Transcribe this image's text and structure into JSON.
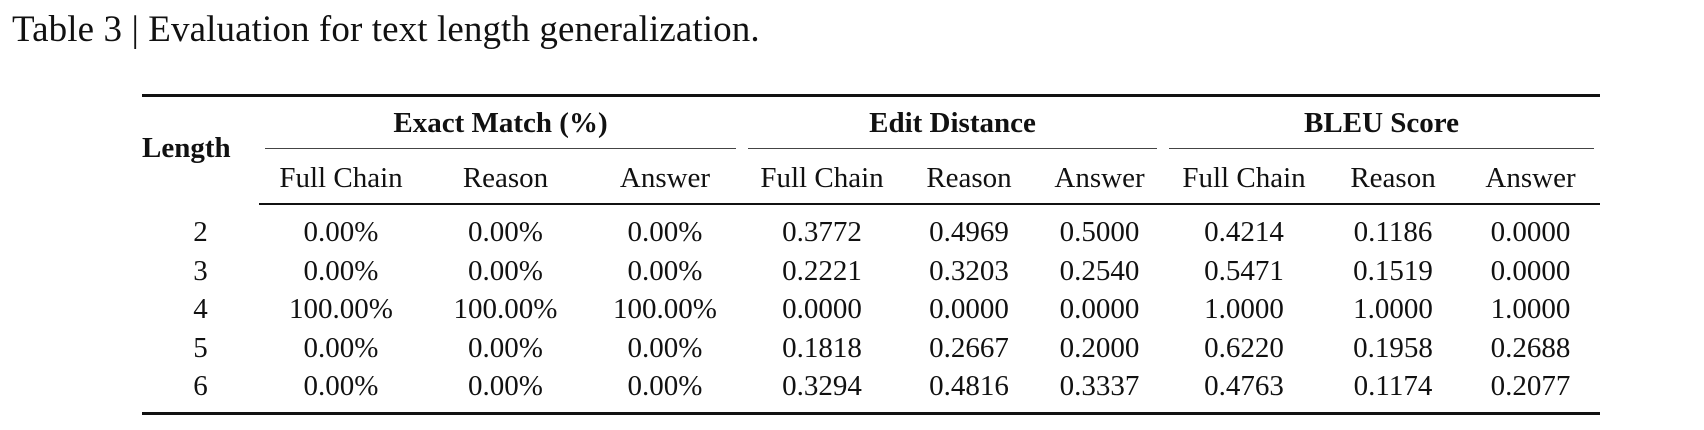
{
  "caption": "Table 3 | Evaluation for text length generalization.",
  "table": {
    "row_header": "Length",
    "groups": [
      "Exact Match (%)",
      "Edit Distance",
      "BLEU Score"
    ],
    "subheaders": [
      "Full Chain",
      "Reason",
      "Answer",
      "Full Chain",
      "Reason",
      "Answer",
      "Full Chain",
      "Reason",
      "Answer"
    ],
    "rows": [
      {
        "length": "2",
        "values": [
          "0.00%",
          "0.00%",
          "0.00%",
          "0.3772",
          "0.4969",
          "0.5000",
          "0.4214",
          "0.1186",
          "0.0000"
        ]
      },
      {
        "length": "3",
        "values": [
          "0.00%",
          "0.00%",
          "0.00%",
          "0.2221",
          "0.3203",
          "0.2540",
          "0.5471",
          "0.1519",
          "0.0000"
        ]
      },
      {
        "length": "4",
        "values": [
          "100.00%",
          "100.00%",
          "100.00%",
          "0.0000",
          "0.0000",
          "0.0000",
          "1.0000",
          "1.0000",
          "1.0000"
        ]
      },
      {
        "length": "5",
        "values": [
          "0.00%",
          "0.00%",
          "0.00%",
          "0.1818",
          "0.2667",
          "0.2000",
          "0.6220",
          "0.1958",
          "0.2688"
        ]
      },
      {
        "length": "6",
        "values": [
          "0.00%",
          "0.00%",
          "0.00%",
          "0.3294",
          "0.4816",
          "0.3337",
          "0.4763",
          "0.1174",
          "0.2077"
        ]
      }
    ]
  }
}
